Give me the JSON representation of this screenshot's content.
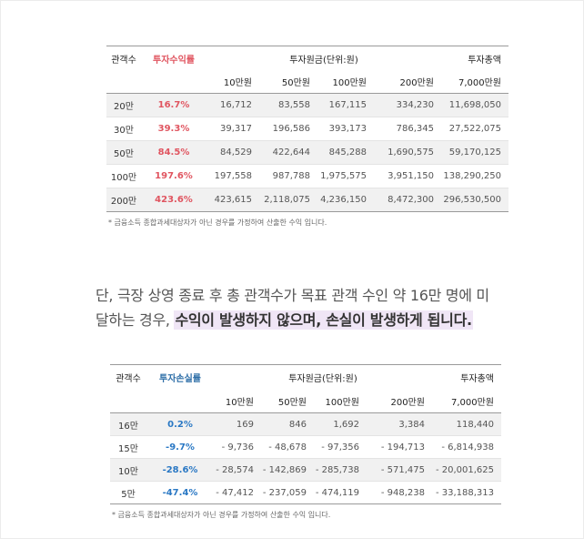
{
  "table1": {
    "header_audience": "관객수",
    "header_rate": "투자수익률",
    "header_principal": "투자원금(단위:원)",
    "header_total": "투자총액",
    "amount_headers": [
      "10만원",
      "50만원",
      "100만원",
      "200만원",
      "7,000만원"
    ],
    "rows": [
      {
        "audience": "20만",
        "rate": "16.7%",
        "values": [
          "16,712",
          "83,558",
          "167,115",
          "334,230",
          "11,698,050"
        ]
      },
      {
        "audience": "30만",
        "rate": "39.3%",
        "values": [
          "39,317",
          "196,586",
          "393,173",
          "786,345",
          "27,522,075"
        ]
      },
      {
        "audience": "50만",
        "rate": "84.5%",
        "values": [
          "84,529",
          "422,644",
          "845,288",
          "1,690,575",
          "59,170,125"
        ]
      },
      {
        "audience": "100만",
        "rate": "197.6%",
        "values": [
          "197,558",
          "987,788",
          "1,975,575",
          "3,951,150",
          "138,290,250"
        ]
      },
      {
        "audience": "200만",
        "rate": "423.6%",
        "values": [
          "423,615",
          "2,118,075",
          "4,236,150",
          "8,472,300",
          "296,530,500"
        ]
      }
    ],
    "note": "* 금융소득 종합과세대상자가 아닌 경우를 가정하여 산출한 수익 입니다."
  },
  "paragraph": {
    "line1": "단, 극장 상영 종료 후 총 관객수가 목표 관객 수인 약 16만 명에 미",
    "line2_plain": "달하는 경우, ",
    "line2_highlight": "수익이 발생하지 않으며, 손실이 발생하게 됩니다."
  },
  "table2": {
    "header_audience": "관객수",
    "header_rate": "투자손실률",
    "header_principal": "투자원금(단위:원)",
    "header_total": "투자총액",
    "amount_headers": [
      "10만원",
      "50만원",
      "100만원",
      "200만원",
      "7,000만원"
    ],
    "rows": [
      {
        "audience": "16만",
        "rate": "0.2%",
        "values": [
          "169",
          "846",
          "1,692",
          "3,384",
          "118,440"
        ]
      },
      {
        "audience": "15만",
        "rate": "-9.7%",
        "values": [
          "- 9,736",
          "- 48,678",
          "- 97,356",
          "- 194,713",
          "- 6,814,938"
        ]
      },
      {
        "audience": "10만",
        "rate": "-28.6%",
        "values": [
          "- 28,574",
          "- 142,869",
          "- 285,738",
          "- 571,475",
          "- 20,001,625"
        ]
      },
      {
        "audience": "5만",
        "rate": "-47.4%",
        "values": [
          "- 47,412",
          "- 237,059",
          "- 474,119",
          "- 948,238",
          "- 33,188,313"
        ]
      }
    ],
    "note": "* 금융소득 종합과세대상자가 아닌 경우를 가정하여 산출한 수익 입니다."
  },
  "colors": {
    "profit_rate": "#e05560",
    "loss_rate": "#2a78c4",
    "highlight_bg": "#f0e6f6"
  }
}
